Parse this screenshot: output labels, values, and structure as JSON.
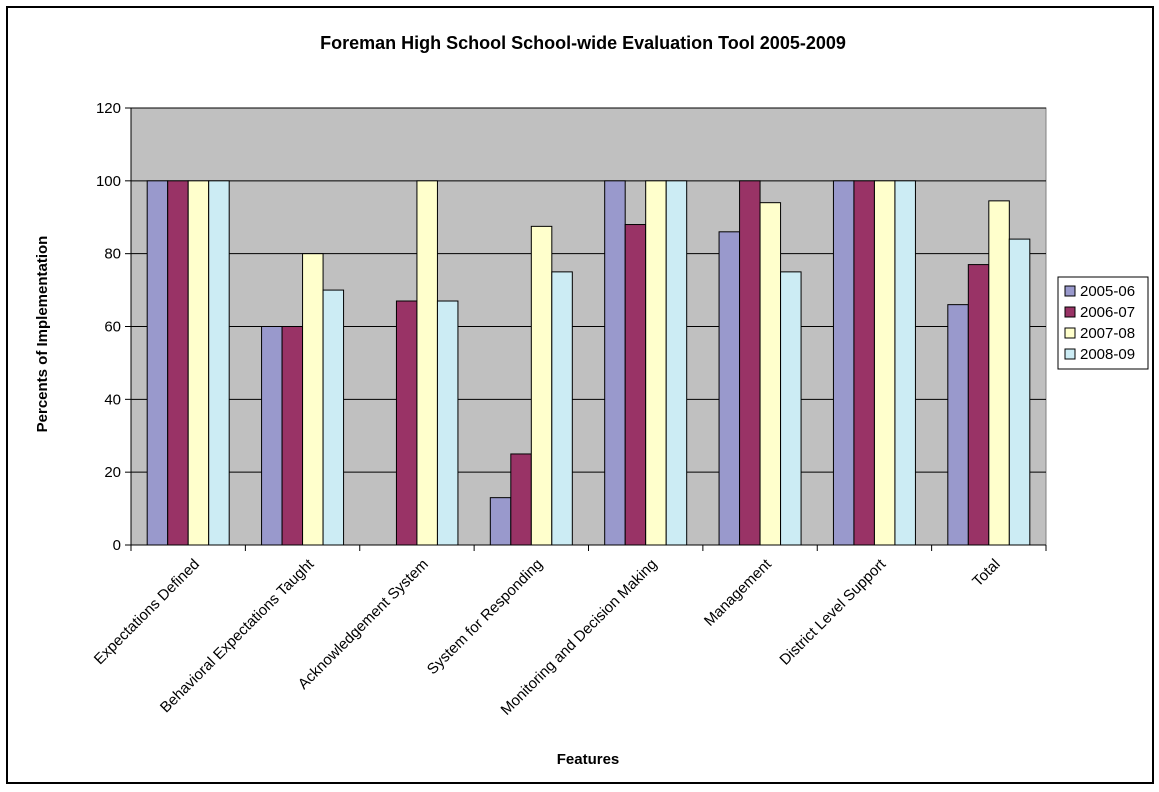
{
  "chart_data": {
    "type": "bar",
    "title": "Foreman High School  School-wide Evaluation Tool 2005-2009",
    "xlabel": "Features",
    "ylabel": "Percents of Implementation",
    "ylim": [
      0,
      120
    ],
    "yticks": [
      0,
      20,
      40,
      60,
      80,
      100,
      120
    ],
    "grid": true,
    "legend_position": "right",
    "plot_background": "#c0c0c0",
    "categories": [
      "Expectations Defined",
      "Behavioral Expectations Taught",
      "Acknowledgement System",
      "System for Responding",
      "Monitoring and Decision Making",
      "Management",
      "District Level Support",
      "Total"
    ],
    "series": [
      {
        "name": "2005-06",
        "color": "#9999cc",
        "values": [
          100,
          60,
          0,
          13,
          100,
          86,
          100,
          66
        ]
      },
      {
        "name": "2006-07",
        "color": "#993366",
        "values": [
          100,
          60,
          67,
          25,
          88,
          100,
          100,
          77
        ]
      },
      {
        "name": "2007-08",
        "color": "#ffffcc",
        "values": [
          100,
          80,
          100,
          87.5,
          100,
          94,
          100,
          94.5
        ]
      },
      {
        "name": "2008-09",
        "color": "#ccecf4",
        "values": [
          100,
          70,
          67,
          75,
          100,
          75,
          100,
          84
        ]
      }
    ]
  }
}
